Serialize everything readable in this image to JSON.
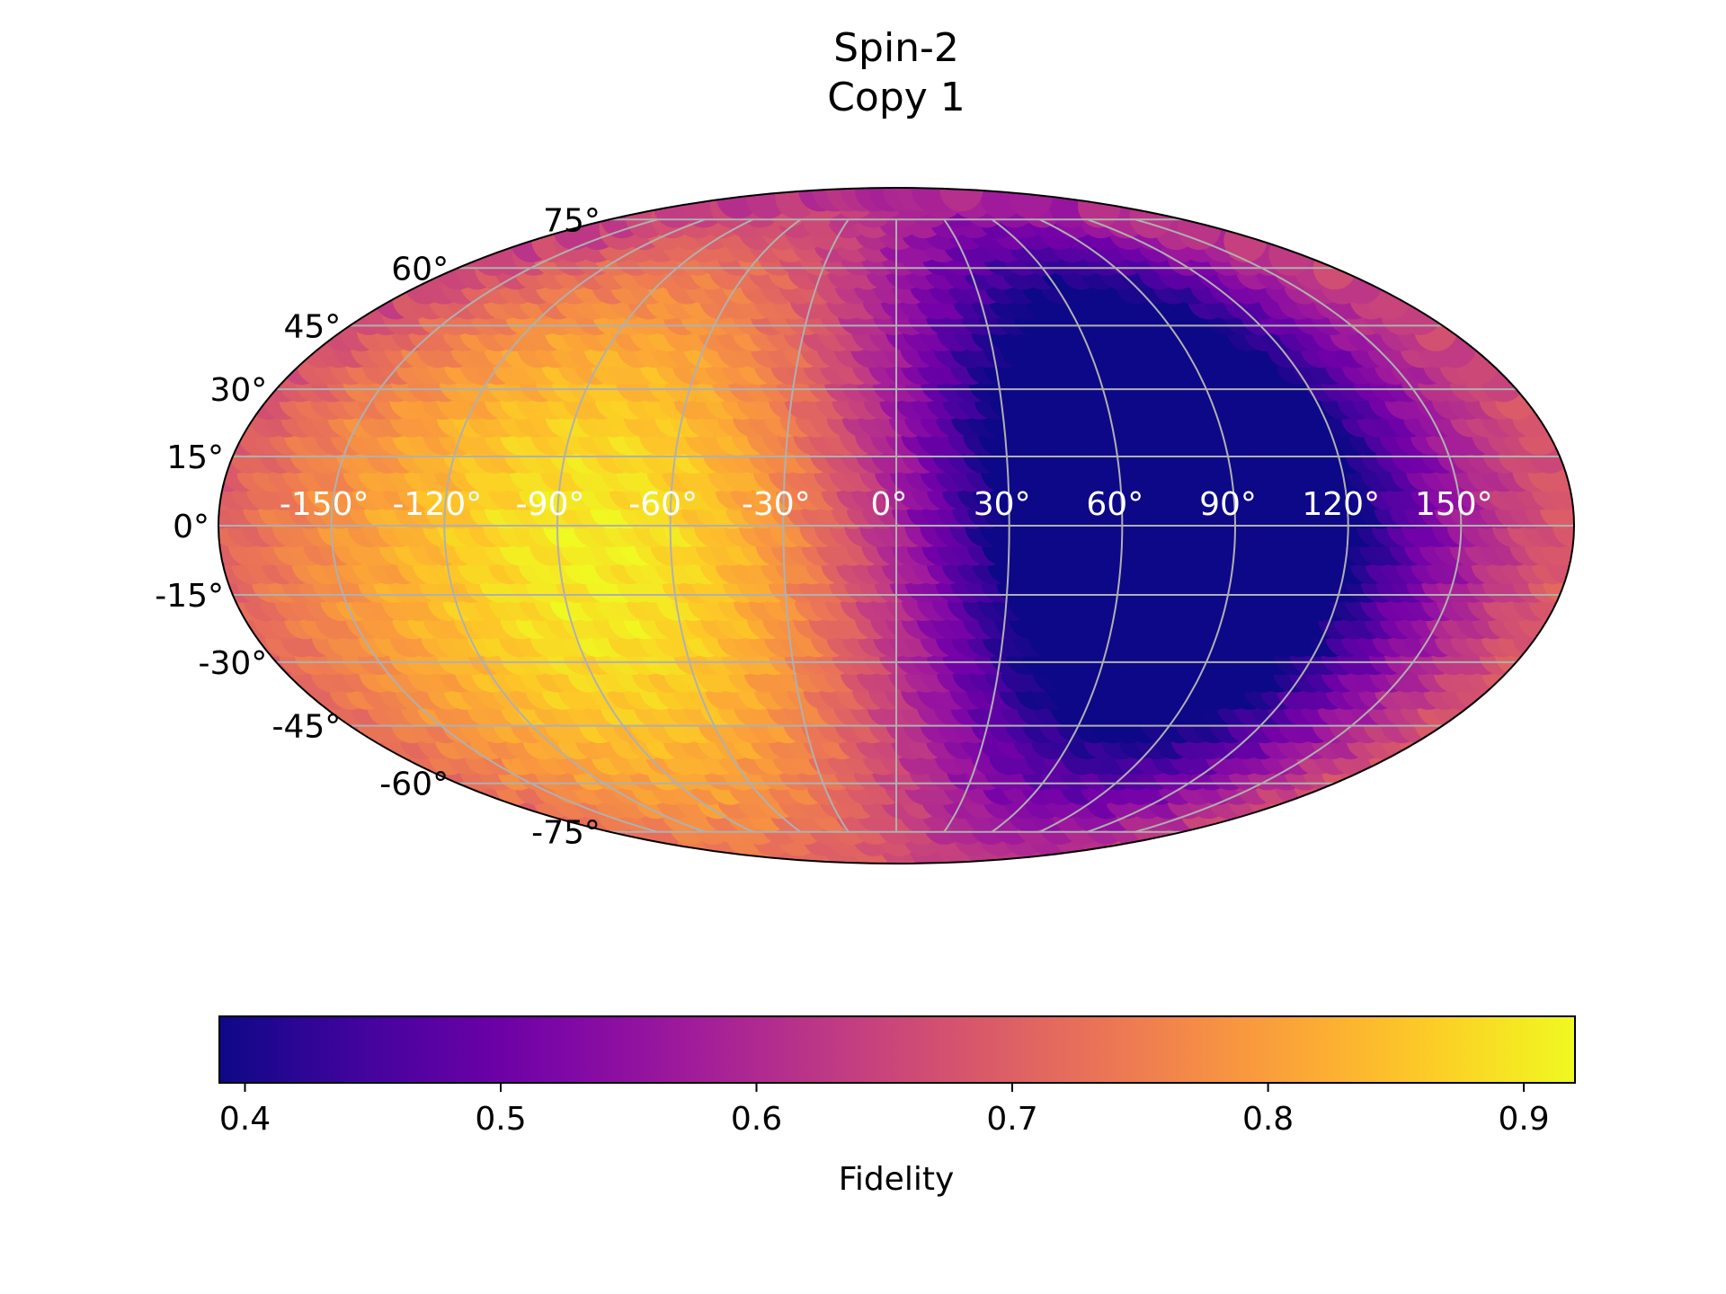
{
  "chart_data": {
    "type": "heatmap",
    "projection": "mollweide",
    "title": [
      "Spin-2",
      "Copy 1"
    ],
    "colormap": "plasma",
    "colormap_stops": [
      "#0d0887",
      "#46039f",
      "#7201a8",
      "#9c179e",
      "#bd3786",
      "#d8576b",
      "#ed7953",
      "#fb9f3a",
      "#fdca26",
      "#f0f921"
    ],
    "value_range": [
      0.39,
      0.92
    ],
    "grid": true,
    "latitude_ticks": [
      {
        "value": 75,
        "label": "75°"
      },
      {
        "value": 60,
        "label": "60°"
      },
      {
        "value": 45,
        "label": "45°"
      },
      {
        "value": 30,
        "label": "30°"
      },
      {
        "value": 15,
        "label": "15°"
      },
      {
        "value": 0,
        "label": "0°"
      },
      {
        "value": -15,
        "label": "-15°"
      },
      {
        "value": -30,
        "label": "-30°"
      },
      {
        "value": -45,
        "label": "-45°"
      },
      {
        "value": -60,
        "label": "-60°"
      },
      {
        "value": -75,
        "label": "-75°"
      }
    ],
    "longitude_ticks": [
      {
        "value": -150,
        "label": "-150°"
      },
      {
        "value": -120,
        "label": "-120°"
      },
      {
        "value": -90,
        "label": "-90°"
      },
      {
        "value": -60,
        "label": "-60°"
      },
      {
        "value": -30,
        "label": "-30°"
      },
      {
        "value": 0,
        "label": "0°"
      },
      {
        "value": 30,
        "label": "30°"
      },
      {
        "value": 60,
        "label": "60°"
      },
      {
        "value": 90,
        "label": "90°"
      },
      {
        "value": 120,
        "label": "120°"
      },
      {
        "value": 150,
        "label": "150°"
      }
    ],
    "field_features": [
      {
        "kind": "max",
        "lon": -75,
        "lat": -5,
        "value": 0.91
      },
      {
        "kind": "min",
        "lon": 80,
        "lat": -10,
        "value": 0.41
      },
      {
        "kind": "min",
        "lon": 70,
        "lat": 25,
        "value": 0.44
      },
      {
        "kind": "baseline",
        "value": 0.74
      }
    ],
    "colorbar": {
      "label": "Fidelity",
      "orientation": "horizontal",
      "range": [
        0.39,
        0.92
      ],
      "ticks": [
        {
          "value": 0.4,
          "label": "0.4"
        },
        {
          "value": 0.5,
          "label": "0.5"
        },
        {
          "value": 0.6,
          "label": "0.6"
        },
        {
          "value": 0.7,
          "label": "0.7"
        },
        {
          "value": 0.8,
          "label": "0.8"
        },
        {
          "value": 0.9,
          "label": "0.9"
        }
      ]
    }
  }
}
